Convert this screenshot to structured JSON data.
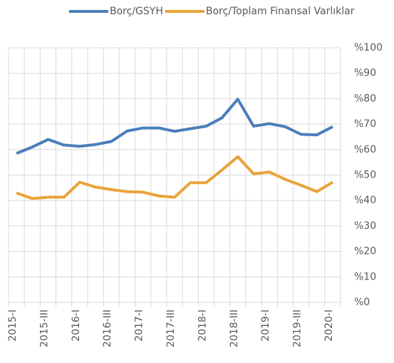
{
  "chart_data": {
    "type": "line",
    "categories": [
      "2015-I",
      null,
      "2015-III",
      null,
      "2016-I",
      null,
      "2016-III",
      null,
      "2017-I",
      null,
      "2017-III",
      null,
      "2018-I",
      null,
      "2018-III",
      null,
      "2019-I",
      null,
      "2019-III",
      null,
      "2020-I"
    ],
    "series": [
      {
        "name": "Borç/GSYH",
        "color": "#4a7ebb",
        "values": [
          58.5,
          61,
          64,
          61.8,
          61.3,
          62,
          63.2,
          67.3,
          68.5,
          68.5,
          67.2,
          68.2,
          69.2,
          72.5,
          79.8,
          69.2,
          70.2,
          69,
          66,
          65.8,
          69
        ]
      },
      {
        "name": "Borç/Toplam Finansal Varlıklar",
        "color": "#e8a33a",
        "values": [
          43,
          40.8,
          41.3,
          41.3,
          47.2,
          45.3,
          44.3,
          43.5,
          43.3,
          41.8,
          41.3,
          47,
          47,
          52,
          57.2,
          50.5,
          51.2,
          48.3,
          46,
          43.5,
          47.2
        ]
      }
    ],
    "ylim": [
      0,
      100
    ],
    "yticks": [
      {
        "value": 0,
        "label": "%0"
      },
      {
        "value": 10,
        "label": "%10"
      },
      {
        "value": 20,
        "label": "%20"
      },
      {
        "value": 30,
        "label": "%30"
      },
      {
        "value": 40,
        "label": "%40"
      },
      {
        "value": 50,
        "label": "%50"
      },
      {
        "value": 60,
        "label": "%60"
      },
      {
        "value": 70,
        "label": "%70"
      },
      {
        "value": 80,
        "label": "%80"
      },
      {
        "value": 90,
        "label": "%90"
      },
      {
        "value": 100,
        "label": "%100"
      }
    ],
    "grid": true,
    "legend": "top"
  }
}
